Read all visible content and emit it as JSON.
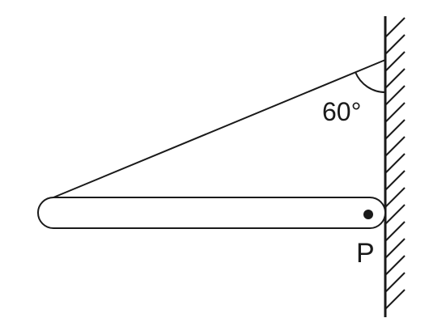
{
  "diagram": {
    "description_labels": {
      "angle": "60°",
      "pivot": "P"
    },
    "angle_degrees": 60,
    "colors": {
      "ink": "#1a1a1a",
      "background": "#ffffff"
    }
  }
}
